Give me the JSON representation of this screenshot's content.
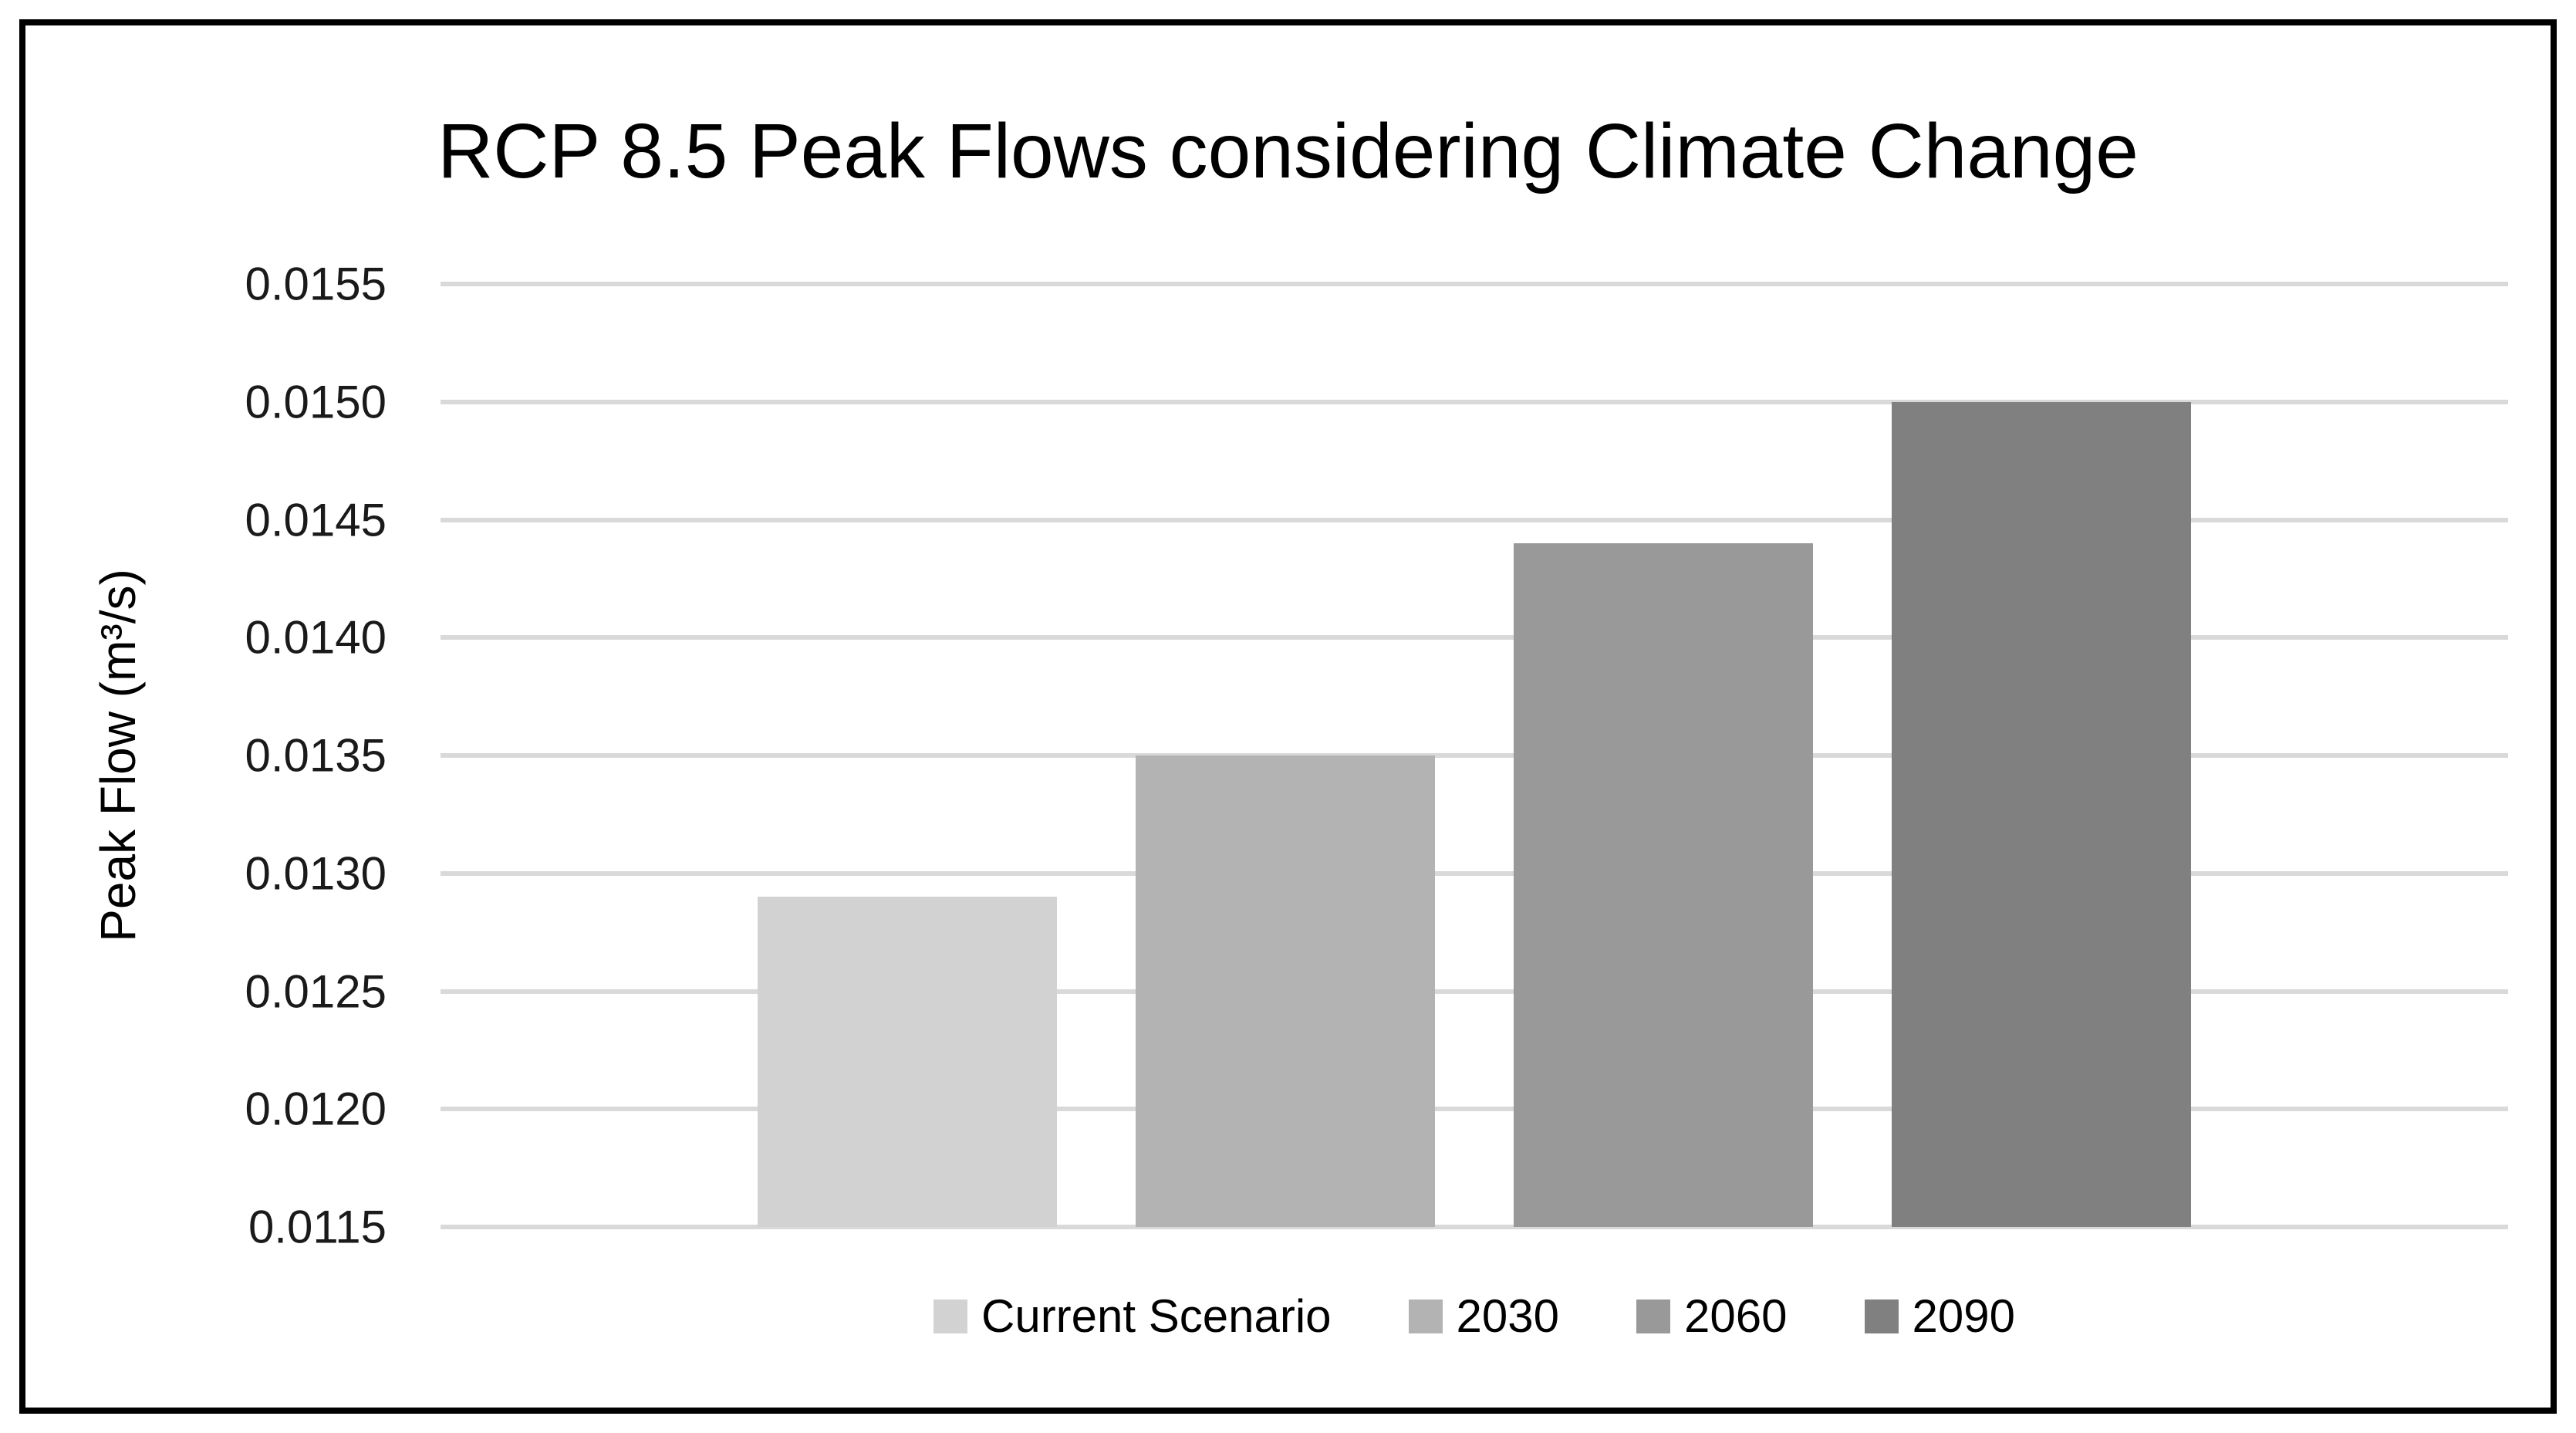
{
  "chart_data": {
    "type": "bar",
    "title": "RCP 8.5 Peak Flows considering Climate Change",
    "xlabel": "",
    "ylabel": "Peak Flow (m³/s)",
    "categories": [
      ""
    ],
    "series": [
      {
        "name": "Current Scenario",
        "values": [
          0.0129
        ],
        "color": "#d2d2d2"
      },
      {
        "name": "2030",
        "values": [
          0.0135
        ],
        "color": "#b3b3b3"
      },
      {
        "name": "2060",
        "values": [
          0.0144
        ],
        "color": "#999999"
      },
      {
        "name": "2090",
        "values": [
          0.015
        ],
        "color": "#808080"
      }
    ],
    "ylim": [
      0.0115,
      0.0155
    ],
    "ytick_labels": [
      "0.0155",
      "0.0150",
      "0.0145",
      "0.0140",
      "0.0135",
      "0.0130",
      "0.0125",
      "0.0120",
      "0.0115"
    ],
    "grid": "horizontal",
    "gridline_color": "#d9d9d9",
    "legend_position": "bottom",
    "frame_border_color": "#000000",
    "background_color": "#ffffff"
  }
}
